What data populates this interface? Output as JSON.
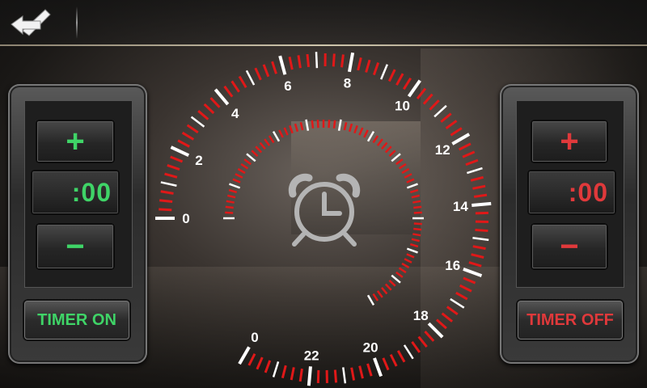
{
  "topbar": {
    "back_icon": "back-arrow-icon"
  },
  "left_panel": {
    "plus_label": "+",
    "time_value": ":00",
    "minus_label": "−",
    "timer_label": "TIMER ON",
    "accent": "#3fd467"
  },
  "right_panel": {
    "plus_label": "+",
    "time_value": ":00",
    "minus_label": "−",
    "timer_label": "TIMER OFF",
    "accent": "#e0393b"
  },
  "dial": {
    "outer_labels": [
      "0",
      "2",
      "4",
      "6",
      "8",
      "10",
      "12",
      "14",
      "16",
      "18",
      "20",
      "22",
      "0"
    ],
    "center_icon": "alarm-clock-icon",
    "tick_color": "#e01818"
  }
}
